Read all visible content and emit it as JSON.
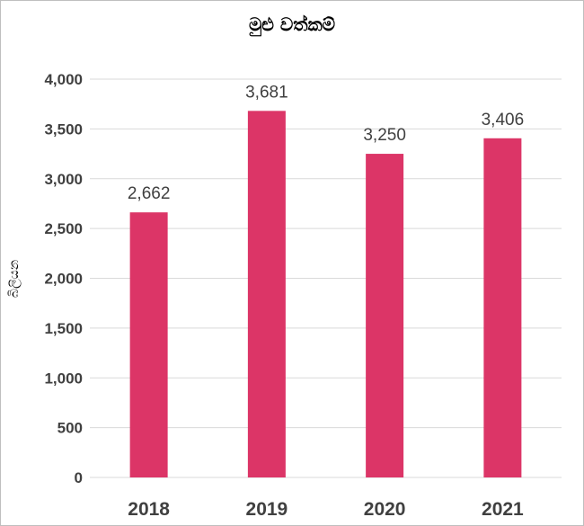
{
  "chart_data": {
    "type": "bar",
    "title": "මුළු වත්කම්",
    "xlabel": "",
    "ylabel": "බිලියන",
    "categories": [
      "2018",
      "2019",
      "2020",
      "2021"
    ],
    "values": [
      2662,
      3681,
      3250,
      3406
    ],
    "data_labels": [
      "2,662",
      "3,681",
      "3,250",
      "3,406"
    ],
    "yticks": [
      0,
      500,
      1000,
      1500,
      2000,
      2500,
      3000,
      3500,
      4000
    ],
    "ytick_labels": [
      "0",
      "500",
      "1,000",
      "1,500",
      "2,000",
      "2,500",
      "3,000",
      "3,500",
      "4,000"
    ],
    "ylim": [
      0,
      4000
    ],
    "grid": true,
    "legend": "none",
    "bar_color": "#dc3567"
  }
}
